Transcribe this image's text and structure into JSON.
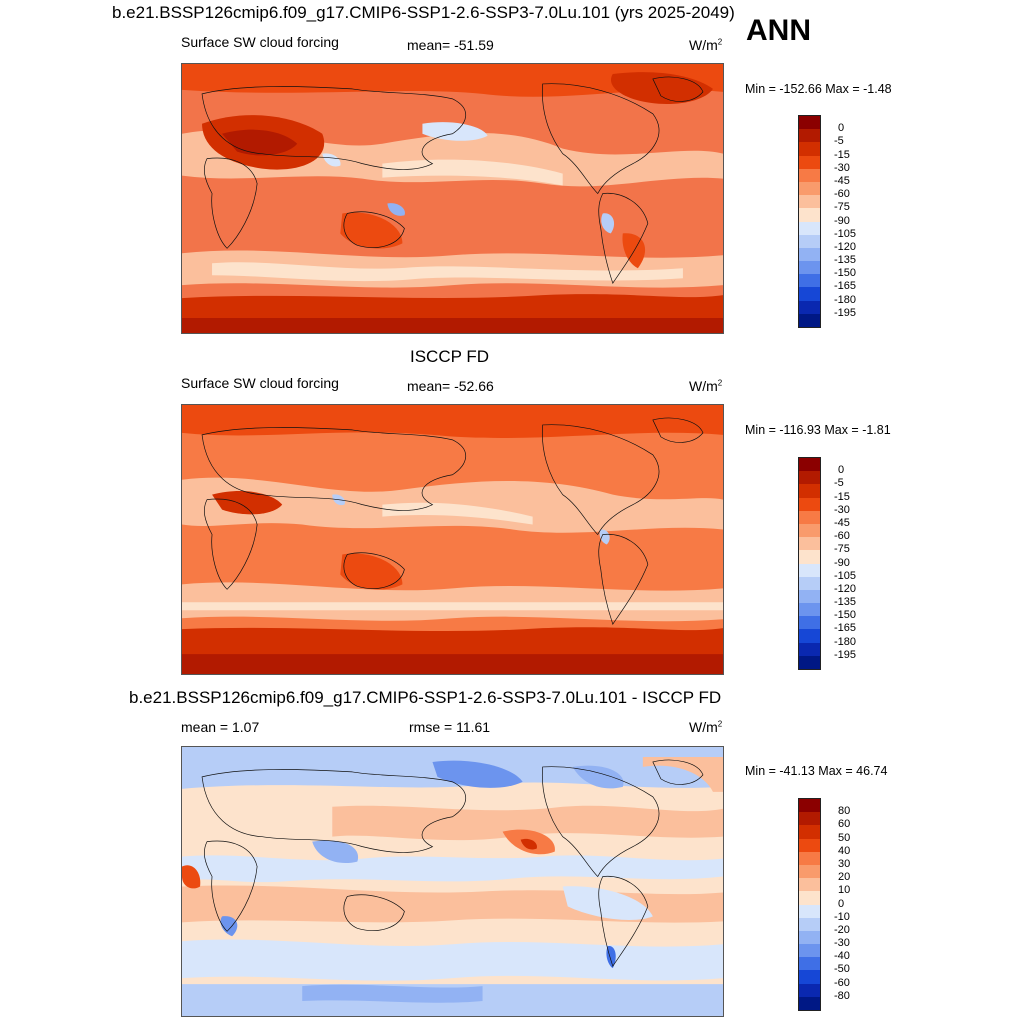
{
  "season": "ANN",
  "units_base": "W/m",
  "units_exp": "2",
  "panels": [
    {
      "title": "b.e21.BSSP126cmip6.f09_g17.CMIP6-SSP1-2.6-SSP3-7.0Lu.101 (yrs 2025-2049)",
      "variable": "Surface SW cloud forcing",
      "stat_label": "mean= -51.59",
      "minmax": "Min = -152.66 Max =  -1.48",
      "palette": "abs"
    },
    {
      "title": "ISCCP FD",
      "variable": "Surface SW cloud forcing",
      "stat_label": "mean= -52.66",
      "minmax": "Min = -116.93 Max =  -1.81",
      "palette": "abs"
    },
    {
      "title": "b.e21.BSSP126cmip6.f09_g17.CMIP6-SSP1-2.6-SSP3-7.0Lu.101 - ISCCP FD",
      "stat_left": "mean =   1.07",
      "stat_mid": "rmse =  11.61",
      "minmax": "Min = -41.13 Max =  46.74",
      "palette": "diff"
    }
  ],
  "colorbars": {
    "abs": {
      "labels": [
        "0",
        "-5",
        "-15",
        "-30",
        "-45",
        "-60",
        "-75",
        "-90",
        "-105",
        "-120",
        "-135",
        "-150",
        "-165",
        "-180",
        "-195"
      ],
      "colors": [
        "#8b0000",
        "#b21a00",
        "#d22f00",
        "#ec4a10",
        "#f77a45",
        "#f99b6c",
        "#fbbf9c",
        "#fde3cc",
        "#d8e6fb",
        "#b6cdf7",
        "#92b2f3",
        "#6c94ee",
        "#3f6fe6",
        "#1647d6",
        "#0a28b0",
        "#001885"
      ]
    },
    "diff": {
      "labels": [
        "80",
        "60",
        "50",
        "40",
        "30",
        "20",
        "10",
        "0",
        "-10",
        "-20",
        "-30",
        "-40",
        "-50",
        "-60",
        "-80"
      ],
      "colors": [
        "#8b0000",
        "#b21a00",
        "#d22f00",
        "#ec4a10",
        "#f77a45",
        "#f99b6c",
        "#fbbf9c",
        "#fde3cc",
        "#d8e6fb",
        "#b6cdf7",
        "#92b2f3",
        "#6c94ee",
        "#3f6fe6",
        "#1647d6",
        "#0a28b0",
        "#001885"
      ]
    }
  }
}
